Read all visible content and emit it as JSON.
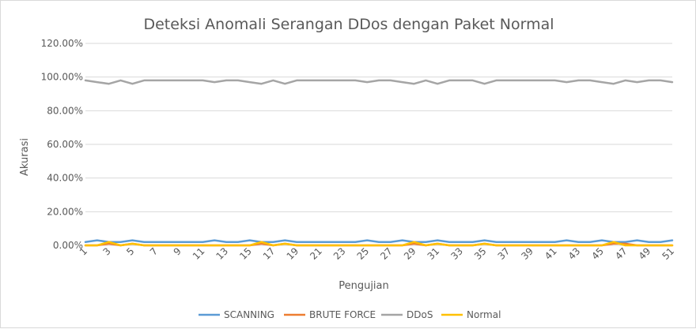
{
  "chart_data": {
    "type": "line",
    "title": "Deteksi Anomali Serangan DDos dengan Paket Normal",
    "xlabel": "Pengujian",
    "ylabel": "Akurasi",
    "ylim": [
      0,
      1.2
    ],
    "y_ticks": [
      "0.00%",
      "20.00%",
      "40.00%",
      "60.00%",
      "80.00%",
      "100.00%",
      "120.00%"
    ],
    "x": [
      1,
      2,
      3,
      4,
      5,
      6,
      7,
      8,
      9,
      10,
      11,
      12,
      13,
      14,
      15,
      16,
      17,
      18,
      19,
      20,
      21,
      22,
      23,
      24,
      25,
      26,
      27,
      28,
      29,
      30,
      31,
      32,
      33,
      34,
      35,
      36,
      37,
      38,
      39,
      40,
      41,
      42,
      43,
      44,
      45,
      46,
      47,
      48,
      49,
      50,
      51
    ],
    "x_tick_labels": [
      "1",
      "3",
      "5",
      "7",
      "9",
      "11",
      "13",
      "15",
      "17",
      "19",
      "21",
      "23",
      "25",
      "27",
      "29",
      "31",
      "33",
      "35",
      "37",
      "39",
      "41",
      "43",
      "45",
      "47",
      "49",
      "51"
    ],
    "grid": "horizontal",
    "legend_position": "bottom",
    "series": [
      {
        "name": "SCANNING",
        "color": "#5b9bd5",
        "values": [
          0.02,
          0.03,
          0.02,
          0.02,
          0.03,
          0.02,
          0.02,
          0.02,
          0.02,
          0.02,
          0.02,
          0.03,
          0.02,
          0.02,
          0.03,
          0.02,
          0.02,
          0.03,
          0.02,
          0.02,
          0.02,
          0.02,
          0.02,
          0.02,
          0.03,
          0.02,
          0.02,
          0.03,
          0.02,
          0.02,
          0.03,
          0.02,
          0.02,
          0.02,
          0.03,
          0.02,
          0.02,
          0.02,
          0.02,
          0.02,
          0.02,
          0.03,
          0.02,
          0.02,
          0.03,
          0.02,
          0.02,
          0.03,
          0.02,
          0.02,
          0.03
        ]
      },
      {
        "name": "BRUTE FORCE",
        "color": "#ed7d31",
        "values": [
          0,
          0,
          0.01,
          0,
          0.01,
          0,
          0,
          0,
          0,
          0,
          0,
          0,
          0,
          0,
          0,
          0.01,
          0,
          0.01,
          0,
          0,
          0,
          0,
          0,
          0,
          0,
          0,
          0,
          0,
          0.01,
          0,
          0.01,
          0,
          0,
          0,
          0.01,
          0,
          0,
          0,
          0,
          0,
          0,
          0,
          0,
          0,
          0,
          0.01,
          0.01,
          0,
          0,
          0,
          0
        ]
      },
      {
        "name": "DDoS",
        "color": "#a5a5a5",
        "values": [
          0.98,
          0.97,
          0.96,
          0.98,
          0.96,
          0.98,
          0.98,
          0.98,
          0.98,
          0.98,
          0.98,
          0.97,
          0.98,
          0.98,
          0.97,
          0.96,
          0.98,
          0.96,
          0.98,
          0.98,
          0.98,
          0.98,
          0.98,
          0.98,
          0.97,
          0.98,
          0.98,
          0.97,
          0.96,
          0.98,
          0.96,
          0.98,
          0.98,
          0.98,
          0.96,
          0.98,
          0.98,
          0.98,
          0.98,
          0.98,
          0.98,
          0.97,
          0.98,
          0.98,
          0.97,
          0.96,
          0.98,
          0.97,
          0.98,
          0.98,
          0.97
        ]
      },
      {
        "name": "Normal",
        "color": "#ffc000",
        "values": [
          0,
          0,
          0.02,
          0,
          0.01,
          0,
          0,
          0,
          0,
          0,
          0,
          0,
          0,
          0,
          0,
          0.02,
          0,
          0.01,
          0,
          0,
          0,
          0,
          0,
          0,
          0,
          0,
          0,
          0,
          0.02,
          0,
          0.01,
          0,
          0,
          0,
          0.01,
          0,
          0,
          0,
          0,
          0,
          0,
          0,
          0,
          0,
          0,
          0.02,
          0,
          0,
          0,
          0,
          0
        ]
      }
    ]
  }
}
